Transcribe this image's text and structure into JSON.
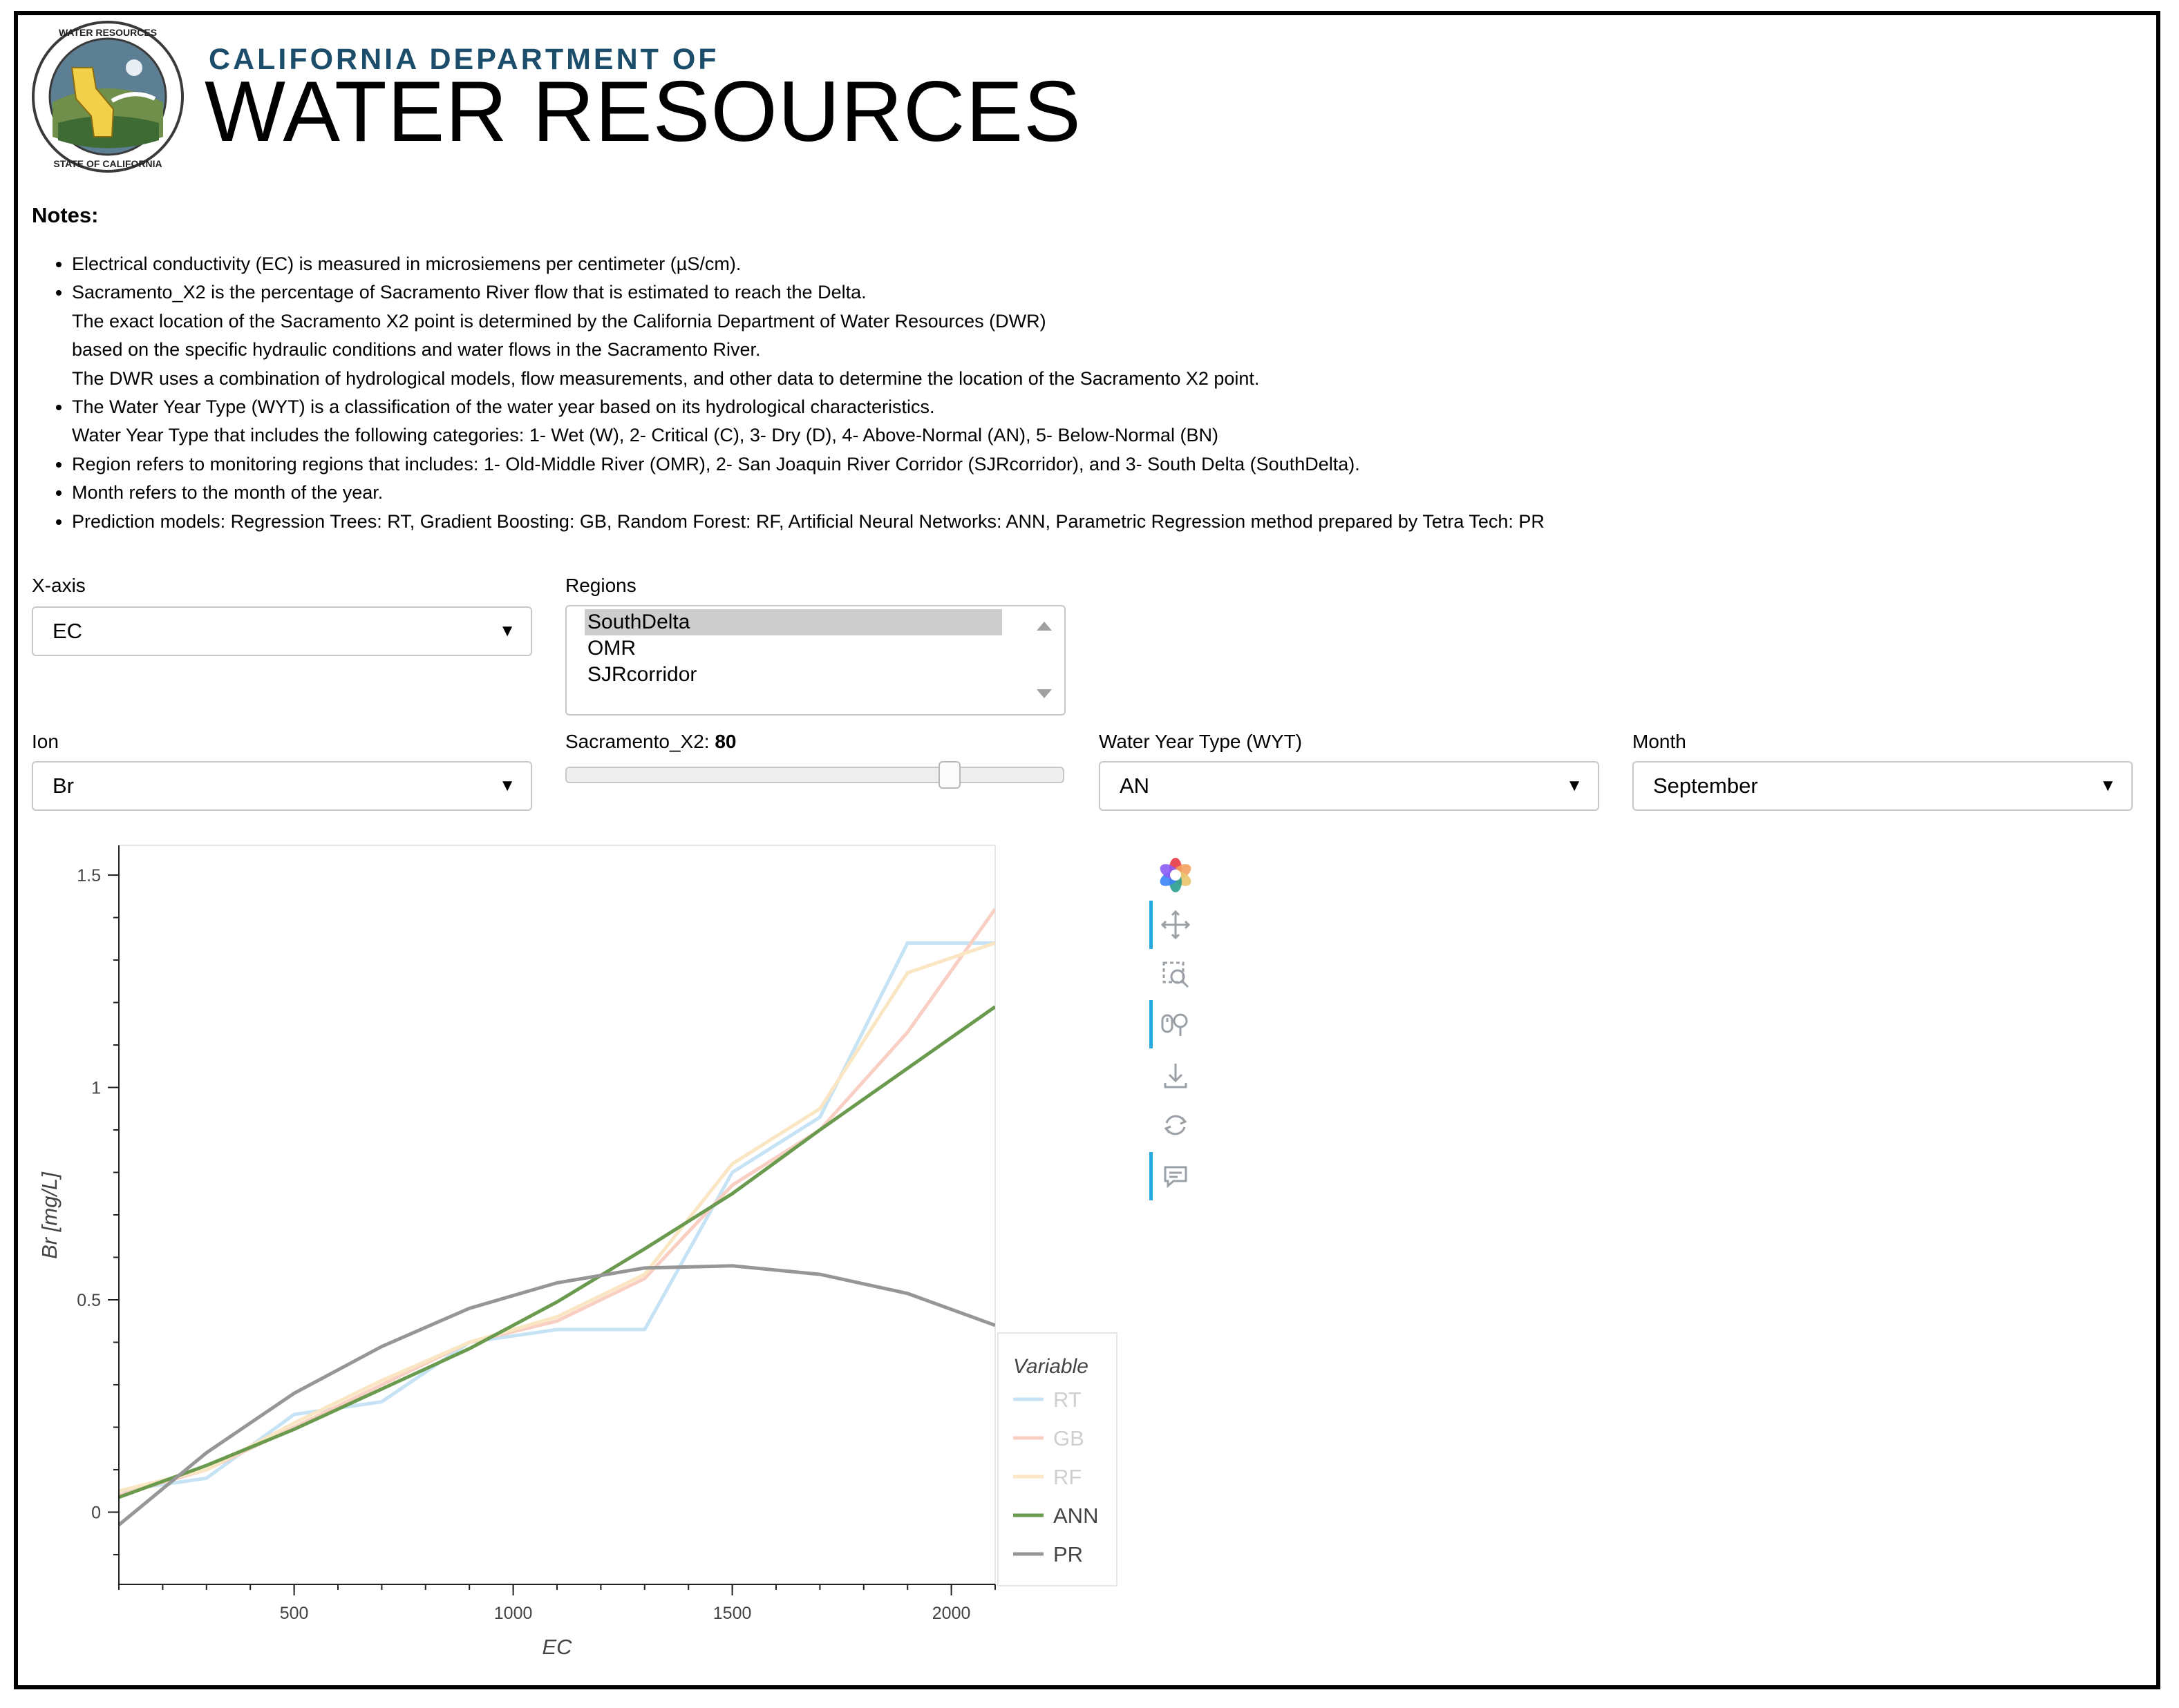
{
  "header": {
    "dept_top": "CALIFORNIA DEPARTMENT OF",
    "dept_main": "WATER RESOURCES",
    "seal_text": "DEPARTMENT OF WATER RESOURCES · STATE OF CALIFORNIA"
  },
  "notes": {
    "title": "Notes:",
    "items": [
      [
        "Electrical conductivity (EC) is measured in microsiemens per centimeter (µS/cm)."
      ],
      [
        "Sacramento_X2 is the percentage of Sacramento River flow that is estimated to reach the Delta.",
        "The exact location of the Sacramento X2 point is determined by the California Department of Water Resources (DWR)",
        "based on the specific hydraulic conditions and water flows in the Sacramento River.",
        "The DWR uses a combination of hydrological models, flow measurements, and other data to determine the location of the Sacramento X2 point."
      ],
      [
        "The Water Year Type (WYT) is a classification of the water year based on its hydrological characteristics.",
        "Water Year Type that includes the following categories: 1- Wet (W), 2- Critical (C), 3- Dry (D), 4- Above-Normal (AN), 5- Below-Normal (BN)"
      ],
      [
        "Region refers to monitoring regions that includes: 1- Old-Middle River (OMR), 2- San Joaquin River Corridor (SJRcorridor), and 3- South Delta (SouthDelta)."
      ],
      [
        "Month refers to the month of the year."
      ],
      [
        "Prediction models: Regression Trees: RT, Gradient Boosting: GB, Random Forest: RF, Artificial Neural Networks: ANN, Parametric Regression method prepared by Tetra Tech: PR"
      ]
    ]
  },
  "controls": {
    "xaxis": {
      "label": "X-axis",
      "value": "EC"
    },
    "regions": {
      "label": "Regions",
      "options": [
        "SouthDelta",
        "OMR",
        "SJRcorridor"
      ],
      "selected": "SouthDelta"
    },
    "ion": {
      "label": "Ion",
      "value": "Br"
    },
    "sacramento": {
      "label": "Sacramento_X2: ",
      "value": "80",
      "fraction": 0.8
    },
    "wyt": {
      "label": "Water Year Type (WYT)",
      "value": "AN"
    },
    "month": {
      "label": "Month",
      "value": "September"
    }
  },
  "toolbar": {
    "tools": [
      "bokeh-logo-icon",
      "pan-icon",
      "box-zoom-icon",
      "wheel-zoom-icon",
      "save-icon",
      "reset-icon",
      "hover-icon"
    ]
  },
  "colors": {
    "RT": "#c5e3f5",
    "GB": "#f9cfc3",
    "RF": "#fbe6c4",
    "ANN": "#6a9a4e",
    "PR": "#969696"
  },
  "chart_data": {
    "type": "line",
    "xlabel": "EC",
    "ylabel": "Br [mg/L]",
    "xlim": [
      100,
      2100
    ],
    "ylim": [
      -0.17,
      1.57
    ],
    "xticks": [
      500,
      1000,
      1500,
      2000
    ],
    "xtick_labels": [
      "500",
      "1000",
      "1500",
      "2000"
    ],
    "yticks": [
      0,
      0.5,
      1,
      1.5
    ],
    "ytick_labels": [
      "0",
      "0.5",
      "1",
      "1.5"
    ],
    "legend_title": "Variable",
    "legend_position": "bottom-right-outside",
    "series": [
      {
        "name": "RT",
        "x": [
          100,
          300,
          500,
          700,
          900,
          1100,
          1300,
          1500,
          1700,
          1900,
          2100
        ],
        "y": [
          0.05,
          0.08,
          0.23,
          0.26,
          0.4,
          0.43,
          0.43,
          0.8,
          0.93,
          1.34,
          1.34
        ]
      },
      {
        "name": "GB",
        "x": [
          100,
          300,
          500,
          700,
          900,
          1100,
          1300,
          1500,
          1700,
          1900,
          2100
        ],
        "y": [
          0.04,
          0.1,
          0.2,
          0.3,
          0.4,
          0.45,
          0.55,
          0.77,
          0.9,
          1.13,
          1.42
        ]
      },
      {
        "name": "RF",
        "x": [
          100,
          300,
          500,
          700,
          900,
          1100,
          1300,
          1500,
          1700,
          1900,
          2100
        ],
        "y": [
          0.05,
          0.1,
          0.21,
          0.31,
          0.4,
          0.46,
          0.56,
          0.82,
          0.95,
          1.27,
          1.34
        ]
      },
      {
        "name": "ANN",
        "x": [
          100,
          300,
          500,
          700,
          900,
          1100,
          1300,
          1500,
          1700,
          1900,
          2100
        ],
        "y": [
          0.035,
          0.11,
          0.195,
          0.29,
          0.385,
          0.495,
          0.62,
          0.75,
          0.9,
          1.045,
          1.19
        ]
      },
      {
        "name": "PR",
        "x": [
          100,
          300,
          500,
          700,
          900,
          1100,
          1300,
          1500,
          1700,
          1900,
          2100
        ],
        "y": [
          -0.03,
          0.14,
          0.28,
          0.39,
          0.48,
          0.54,
          0.575,
          0.58,
          0.56,
          0.515,
          0.44
        ]
      }
    ]
  }
}
